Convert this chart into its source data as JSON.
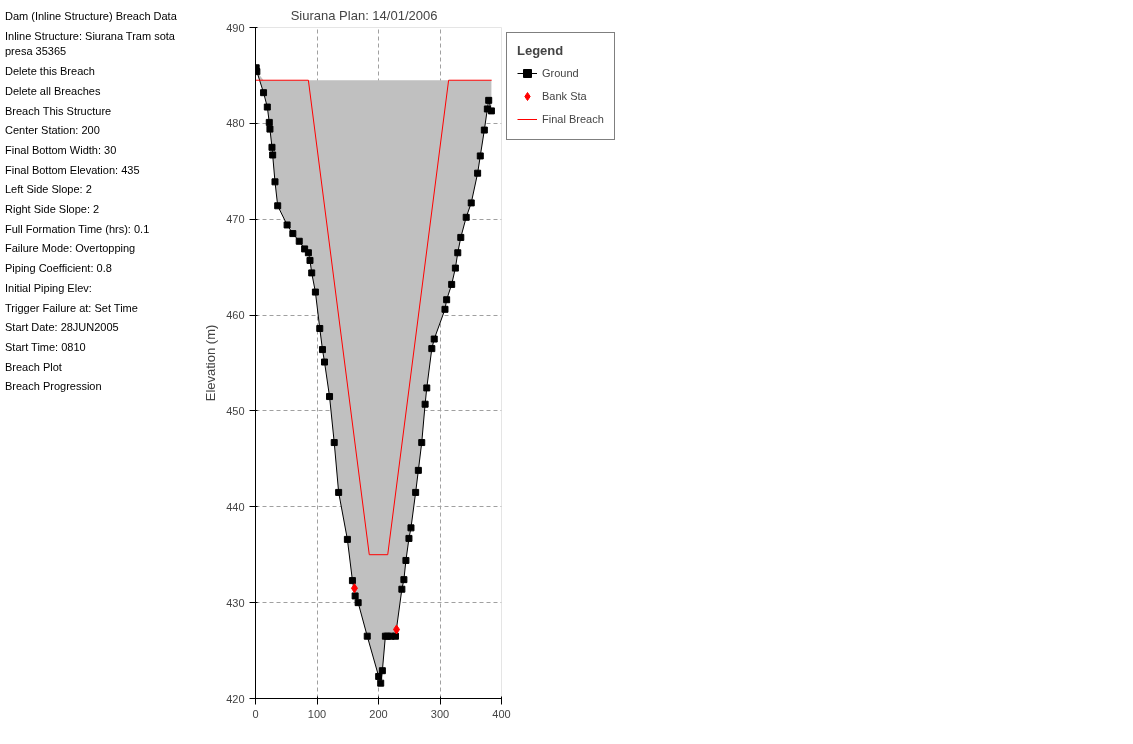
{
  "chart_data": {
    "type": "line",
    "title": "Siurana     Plan:     14/01/2006",
    "ylabel": "Elevation (m)",
    "legend_title": "Legend",
    "legend": "right",
    "grid": true,
    "xlim": [
      0,
      400
    ],
    "xticks": [
      0,
      100,
      200,
      300,
      400
    ],
    "ylim": [
      420,
      490
    ],
    "yticks": [
      420,
      430,
      440,
      450,
      460,
      470,
      480,
      490
    ],
    "series": [
      {
        "name": "Ground",
        "marker": "square",
        "color": "#000000",
        "x": [
          1.1,
          2.2,
          13.1,
          19.2,
          22.4,
          23.5,
          26.8,
          27.9,
          31.7,
          36.1,
          51.4,
          60.7,
          71.1,
          79.9,
          86,
          88.6,
          91.4,
          97.4,
          104.5,
          108.9,
          112.2,
          120.4,
          128,
          135.2,
          149.4,
          157.6,
          162,
          166.9,
          181.7,
          200.3,
          203.6,
          206.3,
          211.2,
          214.5,
          220.5,
          227.6,
          238,
          241.3,
          244.6,
          249.5,
          252.8,
          260.4,
          264.8,
          270.3,
          275.8,
          278.5,
          286.7,
          290.6,
          308.1,
          310.8,
          319,
          325,
          328.9,
          333.8,
          342.6,
          350.8,
          361.2,
          365.5,
          372.1,
          377,
          379.2,
          383.6
        ],
        "values": [
          485.8,
          485.4,
          483.2,
          481.7,
          480.1,
          479.4,
          477.5,
          476.7,
          473.9,
          471.4,
          469.4,
          468.5,
          467.7,
          466.9,
          466.5,
          465.7,
          464.4,
          462.4,
          458.6,
          456.4,
          455.1,
          451.5,
          446.7,
          441.5,
          436.6,
          432.3,
          430.7,
          430,
          426.5,
          422.3,
          421.6,
          422.9,
          426.5,
          426.5,
          426.5,
          426.5,
          431.4,
          432.4,
          434.4,
          436.7,
          437.8,
          441.5,
          443.8,
          446.7,
          450.7,
          452.4,
          456.5,
          457.5,
          460.6,
          461.6,
          463.2,
          464.9,
          466.5,
          468.1,
          470.2,
          471.7,
          474.8,
          476.6,
          479.3,
          481.5,
          482.4,
          481.3
        ],
        "lower": [
          485.8,
          485.4,
          483.2,
          481.7,
          480.1,
          479.4,
          477.5,
          476.7,
          473.9,
          471.4,
          469.4,
          468.5,
          467.7,
          466.9,
          466.5,
          465.7,
          464.4,
          462.4,
          458.6,
          456.4,
          455.1,
          451.5,
          446.7,
          441.5,
          436.6,
          432.3,
          430.7,
          430,
          426.5,
          422.3,
          421.6,
          422.9,
          426.5,
          426.5,
          426.5,
          426.5,
          431.4,
          432.4,
          434.4,
          436.7,
          437.8,
          441.5,
          443.8,
          446.7,
          450.7,
          452.4,
          456.5,
          457.5,
          460.6,
          461.6,
          463.2,
          464.9,
          466.5,
          468.1,
          470.2,
          471.7,
          474.8,
          476.6,
          479.3,
          481.5,
          482.4,
          481.3
        ],
        "upper": [
          485.8,
          485.4,
          484.5,
          484.5,
          484.5,
          484.5,
          484.5,
          484.5,
          484.5,
          484.5,
          484.5,
          484.5,
          484.5,
          484.5,
          484.5,
          484.5,
          484.5,
          484.5,
          484.5,
          484.5,
          484.5,
          484.5,
          484.5,
          484.5,
          484.5,
          484.5,
          484.5,
          484.5,
          484.5,
          484.5,
          484.5,
          484.5,
          484.5,
          484.5,
          484.5,
          484.5,
          484.5,
          484.5,
          484.5,
          484.5,
          484.5,
          484.5,
          484.5,
          484.5,
          484.5,
          484.5,
          484.5,
          484.5,
          484.5,
          484.5,
          484.5,
          484.5,
          484.5,
          484.5,
          484.5,
          484.5,
          484.5,
          484.5,
          484.5,
          484.5,
          484.5,
          484.5
        ]
      },
      {
        "name": "Bank Sta",
        "type": "scatter",
        "marker": "diamond",
        "color": "#ff0000",
        "x": [
          160.9,
          229.3
        ],
        "values": [
          431.5,
          427.2
        ]
      },
      {
        "name": "Final Breach",
        "marker": "none",
        "color": "#ff0000",
        "x": [
          0,
          86,
          185,
          215,
          314,
          384
        ],
        "values": [
          484.5,
          484.5,
          435,
          435,
          484.5,
          484.5
        ]
      }
    ],
    "annotations": [
      "Dam (Inline Structure) Breach Data",
      "Inline Structure: Siurana     Tram sota presa 35365",
      "Delete this Breach",
      "Delete all Breaches",
      "Breach This Structure",
      "Center Station: 200",
      "Final Bottom Width: 30",
      "Final Bottom Elevation: 435",
      "Left Side Slope: 2",
      "Right Side Slope: 2",
      "Full Formation Time (hrs): 0.1",
      "Failure Mode: Overtopping",
      "Piping Coefficient: 0.8",
      "Initial Piping Elev:",
      "Trigger Failure at: Set Time",
      "Start Date: 28JUN2005",
      "Start Time: 0810",
      "Breach Plot",
      "Breach Progression"
    ]
  }
}
